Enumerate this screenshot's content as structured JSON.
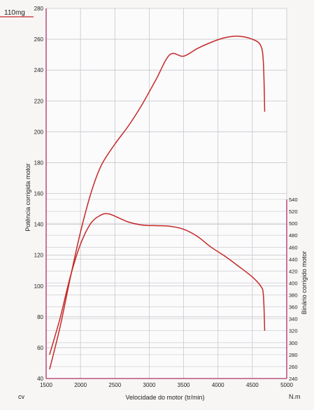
{
  "corner_label": "110mg",
  "unit_left": "cv",
  "unit_right": "N.m",
  "colors": {
    "curve": "#c62828",
    "axis": "#b0306a",
    "grid": "#c7c7cf",
    "text": "#222222",
    "background": "#f7f6f4"
  },
  "chart_data": {
    "type": "line",
    "xlabel": "Velocidade do motor (tr/min)",
    "ylabel_left": "Potência corrigida  motor",
    "ylabel_right": "Binário corrigido motor",
    "xlim": [
      1500,
      5000
    ],
    "ylim_left": [
      40,
      280
    ],
    "ylim_right": [
      240,
      540
    ],
    "x_ticks": [
      1500,
      2000,
      2500,
      3000,
      3500,
      4000,
      4500,
      5000
    ],
    "y_left_ticks": [
      40,
      60,
      80,
      100,
      120,
      140,
      160,
      180,
      200,
      220,
      240,
      260,
      280
    ],
    "y_right_ticks": [
      240,
      260,
      280,
      300,
      320,
      340,
      360,
      380,
      400,
      420,
      440,
      460,
      480,
      500,
      520,
      540
    ],
    "grid": true,
    "series": [
      {
        "axis": "left",
        "x": [
          1550,
          1700,
          1850,
          2000,
          2150,
          2300,
          2500,
          2700,
          2900,
          3100,
          3300,
          3500,
          3700,
          3900,
          4100,
          4300,
          4500,
          4620,
          4660,
          4680
        ],
        "y": [
          46,
          73,
          105,
          135,
          160,
          178,
          192,
          204,
          218,
          234,
          250,
          249,
          254,
          258,
          261,
          262,
          260,
          256,
          245,
          213
        ]
      },
      {
        "axis": "right",
        "x": [
          1550,
          1700,
          1850,
          2000,
          2150,
          2300,
          2400,
          2500,
          2700,
          2900,
          3100,
          3300,
          3500,
          3700,
          3900,
          4100,
          4300,
          4500,
          4620,
          4660,
          4680
        ],
        "y": [
          280,
          340,
          410,
          465,
          500,
          514,
          516,
          512,
          502,
          497,
          496,
          495,
          490,
          478,
          460,
          445,
          428,
          410,
          395,
          380,
          320
        ]
      }
    ]
  }
}
